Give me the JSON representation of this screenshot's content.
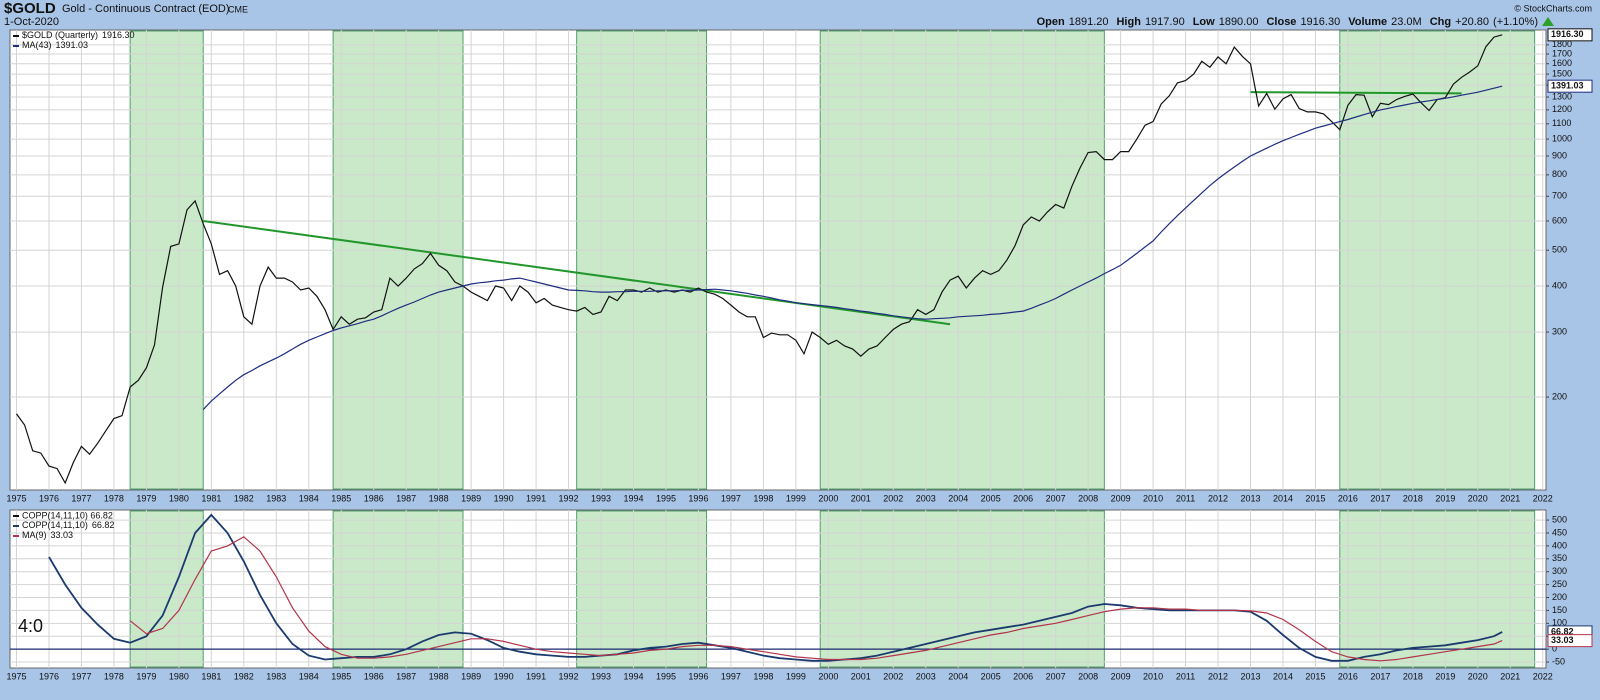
{
  "chart_data": [
    {
      "type": "line",
      "title": "$GOLD",
      "subtitle": "Gold - Continuous Contract (EOD)",
      "exchange": "CME",
      "date": "1-Oct-2020",
      "quote": [
        {
          "name": "Open",
          "value": 1891.2,
          "label": "1891.20"
        },
        {
          "name": "High",
          "value": 1917.9,
          "label": "1917.90"
        },
        {
          "name": "Low",
          "value": 1890,
          "label": "1890.00"
        },
        {
          "name": "Close",
          "value": 1916.3,
          "label": "1916.30"
        },
        {
          "name": "Volume",
          "value": 23000000,
          "label": "23.0M"
        },
        {
          "name": "Chg",
          "value": 20.8,
          "label": "+20.80"
        }
      ],
      "change_pct": {
        "value": 1.1,
        "label": "(+1.10%)"
      },
      "credit": "© StockCharts.com",
      "log_scale": true,
      "grid": true,
      "xlim": [
        1974.8,
        2022.1
      ],
      "xticks": [
        1975,
        1976,
        1977,
        1978,
        1979,
        1980,
        1981,
        1982,
        1983,
        1984,
        1985,
        1986,
        1987,
        1988,
        1989,
        1990,
        1991,
        1992,
        1993,
        1994,
        1995,
        1996,
        1997,
        1998,
        1999,
        2000,
        2001,
        2002,
        2003,
        2004,
        2005,
        2006,
        2007,
        2008,
        2009,
        2010,
        2011,
        2012,
        2013,
        2014,
        2015,
        2016,
        2017,
        2018,
        2019,
        2020,
        2021,
        2022
      ],
      "ylim": [
        112,
        1975
      ],
      "yticks": [
        200,
        300,
        400,
        500,
        600,
        700,
        800,
        900,
        1000,
        1100,
        1200,
        1300,
        1400,
        1500,
        1600,
        1700,
        1800
      ],
      "bands": [
        [
          1978.5,
          1980.75
        ],
        [
          1984.75,
          1988.75
        ],
        [
          1992.25,
          1996.25
        ],
        [
          1999.75,
          2008.5
        ],
        [
          2015.75,
          2021.75
        ]
      ],
      "trendlines": [
        {
          "color": "#21962a",
          "x": [
            1980.75,
            2003.75
          ],
          "values": [
            600,
            315
          ]
        },
        {
          "color": "#21962a",
          "x": [
            2013,
            2019.5
          ],
          "values": [
            1340,
            1330
          ]
        }
      ],
      "x": [
        1975,
        1975.25,
        1975.5,
        1975.75,
        1976,
        1976.25,
        1976.5,
        1976.75,
        1977,
        1977.25,
        1977.5,
        1977.75,
        1978,
        1978.25,
        1978.5,
        1978.75,
        1979,
        1979.25,
        1979.5,
        1979.75,
        1980,
        1980.25,
        1980.5,
        1980.75,
        1981,
        1981.25,
        1981.5,
        1981.75,
        1982,
        1982.25,
        1982.5,
        1982.75,
        1983,
        1983.25,
        1983.5,
        1983.75,
        1984,
        1984.25,
        1984.5,
        1984.75,
        1985,
        1985.25,
        1985.5,
        1985.75,
        1986,
        1986.25,
        1986.5,
        1986.75,
        1987,
        1987.25,
        1987.5,
        1987.75,
        1988,
        1988.25,
        1988.5,
        1988.75,
        1989,
        1989.25,
        1989.5,
        1989.75,
        1990,
        1990.25,
        1990.5,
        1990.75,
        1991,
        1991.25,
        1991.5,
        1991.75,
        1992,
        1992.25,
        1992.5,
        1992.75,
        1993,
        1993.25,
        1993.5,
        1993.75,
        1994,
        1994.25,
        1994.5,
        1994.75,
        1995,
        1995.25,
        1995.5,
        1995.75,
        1996,
        1996.25,
        1996.5,
        1996.75,
        1997,
        1997.25,
        1997.5,
        1997.75,
        1998,
        1998.25,
        1998.5,
        1998.75,
        1999,
        1999.25,
        1999.5,
        1999.75,
        2000,
        2000.25,
        2000.5,
        2000.75,
        2001,
        2001.25,
        2001.5,
        2001.75,
        2002,
        2002.25,
        2002.5,
        2002.75,
        2003,
        2003.25,
        2003.5,
        2003.75,
        2004,
        2004.25,
        2004.5,
        2004.75,
        2005,
        2005.25,
        2005.5,
        2005.75,
        2006,
        2006.25,
        2006.5,
        2006.75,
        2007,
        2007.25,
        2007.5,
        2007.75,
        2008,
        2008.25,
        2008.5,
        2008.75,
        2009,
        2009.25,
        2009.5,
        2009.75,
        2010,
        2010.25,
        2010.5,
        2010.75,
        2011,
        2011.25,
        2011.5,
        2011.75,
        2012,
        2012.25,
        2012.5,
        2012.75,
        2013,
        2013.25,
        2013.5,
        2013.75,
        2014,
        2014.25,
        2014.5,
        2014.75,
        2015,
        2015.25,
        2015.5,
        2015.75,
        2016,
        2016.25,
        2016.5,
        2016.75,
        2017,
        2017.25,
        2017.5,
        2017.75,
        2018,
        2018.25,
        2018.5,
        2018.75,
        2019,
        2019.25,
        2019.5,
        2019.75,
        2020,
        2020.25,
        2020.5,
        2020.75
      ],
      "series": [
        {
          "name": "$GOLD (Quarterly)",
          "color": "#111111",
          "last": {
            "value": 1916.3,
            "label": "1916.30"
          },
          "values": [
            180,
            168,
            143,
            141,
            130,
            128,
            117,
            133,
            147,
            140,
            150,
            162,
            175,
            178,
            213,
            222,
            240,
            277,
            397,
            512,
            520,
            643,
            680,
            590,
            520,
            430,
            440,
            400,
            330,
            315,
            400,
            450,
            420,
            420,
            410,
            390,
            395,
            375,
            345,
            305,
            330,
            315,
            325,
            328,
            340,
            345,
            420,
            400,
            420,
            445,
            460,
            490,
            455,
            440,
            410,
            400,
            385,
            375,
            365,
            400,
            395,
            365,
            400,
            385,
            360,
            370,
            355,
            350,
            345,
            342,
            350,
            335,
            340,
            375,
            365,
            390,
            390,
            385,
            395,
            385,
            390,
            385,
            390,
            385,
            395,
            385,
            380,
            370,
            355,
            340,
            330,
            330,
            290,
            298,
            295,
            295,
            285,
            262,
            300,
            290,
            278,
            285,
            275,
            270,
            258,
            270,
            275,
            290,
            305,
            315,
            320,
            345,
            335,
            345,
            385,
            415,
            425,
            395,
            420,
            440,
            430,
            440,
            470,
            515,
            585,
            615,
            600,
            635,
            665,
            650,
            745,
            835,
            920,
            925,
            880,
            880,
            925,
            925,
            1000,
            1090,
            1115,
            1245,
            1310,
            1420,
            1440,
            1500,
            1625,
            1565,
            1670,
            1600,
            1775,
            1675,
            1600,
            1230,
            1330,
            1205,
            1285,
            1320,
            1210,
            1185,
            1185,
            1170,
            1115,
            1060,
            1235,
            1320,
            1315,
            1150,
            1250,
            1240,
            1280,
            1305,
            1325,
            1255,
            1195,
            1280,
            1295,
            1410,
            1470,
            1520,
            1580,
            1780,
            1890,
            1916.3
          ]
        },
        {
          "name": "MA(43)",
          "color": "#1f2d80",
          "last": {
            "value": 1391.03,
            "label": "1391.03"
          },
          "values": [
            null,
            null,
            null,
            null,
            null,
            null,
            null,
            null,
            null,
            null,
            null,
            null,
            null,
            null,
            null,
            null,
            null,
            null,
            null,
            null,
            null,
            null,
            null,
            185,
            195,
            204,
            213,
            222,
            230,
            236,
            243,
            249,
            255,
            262,
            270,
            278,
            285,
            291,
            297,
            303,
            308,
            312,
            316,
            321,
            325,
            332,
            340,
            348,
            355,
            362,
            370,
            378,
            385,
            390,
            395,
            400,
            405,
            408,
            410,
            413,
            415,
            418,
            420,
            415,
            410,
            405,
            400,
            395,
            390,
            389,
            388,
            386,
            385,
            385,
            386,
            386,
            387,
            387,
            387,
            388,
            388,
            388,
            389,
            389,
            390,
            391,
            392,
            390,
            388,
            385,
            382,
            378,
            375,
            371,
            367,
            364,
            360,
            358,
            356,
            354,
            352,
            350,
            347,
            345,
            342,
            340,
            337,
            335,
            332,
            330,
            328,
            326,
            325,
            326,
            327,
            328,
            330,
            331,
            332,
            333,
            335,
            336,
            338,
            340,
            342,
            348,
            355,
            362,
            370,
            380,
            390,
            400,
            410,
            420,
            432,
            443,
            455,
            472,
            490,
            510,
            530,
            560,
            590,
            620,
            650,
            682,
            715,
            748,
            780,
            810,
            840,
            870,
            900,
            922,
            945,
            968,
            990,
            1010,
            1030,
            1050,
            1070,
            1085,
            1100,
            1115,
            1130,
            1148,
            1165,
            1183,
            1200,
            1212,
            1225,
            1237,
            1250,
            1260,
            1270,
            1280,
            1290,
            1302,
            1315,
            1327,
            1340,
            1357,
            1374,
            1391.03
          ]
        }
      ]
    },
    {
      "type": "line",
      "title": "COPP(14,11,10) 66.82",
      "annotation": "4:0",
      "grid": true,
      "reference_line": 0,
      "xlim": [
        1974.8,
        2022.1
      ],
      "xticks": [
        1975,
        1976,
        1977,
        1978,
        1979,
        1980,
        1981,
        1982,
        1983,
        1984,
        1985,
        1986,
        1987,
        1988,
        1989,
        1990,
        1991,
        1992,
        1993,
        1994,
        1995,
        1996,
        1997,
        1998,
        1999,
        2000,
        2001,
        2002,
        2003,
        2004,
        2005,
        2006,
        2007,
        2008,
        2009,
        2010,
        2011,
        2012,
        2013,
        2014,
        2015,
        2016,
        2017,
        2018,
        2019,
        2020,
        2021,
        2022
      ],
      "ylim": [
        -73,
        539
      ],
      "yticks": [
        -50,
        0,
        50,
        100,
        150,
        200,
        250,
        300,
        350,
        400,
        450,
        500
      ],
      "x": [
        1976,
        1976.5,
        1977,
        1977.5,
        1978,
        1978.5,
        1979,
        1979.5,
        1980,
        1980.5,
        1981,
        1981.5,
        1982,
        1982.5,
        1983,
        1983.5,
        1984,
        1984.5,
        1985,
        1985.5,
        1986,
        1986.5,
        1987,
        1987.5,
        1988,
        1988.5,
        1989,
        1989.5,
        1990,
        1990.5,
        1991,
        1991.5,
        1992,
        1992.5,
        1993,
        1993.5,
        1994,
        1994.5,
        1995,
        1995.5,
        1996,
        1996.5,
        1997,
        1997.5,
        1998,
        1998.5,
        1999,
        1999.5,
        2000,
        2000.5,
        2001,
        2001.5,
        2002,
        2002.5,
        2003,
        2003.5,
        2004,
        2004.5,
        2005,
        2005.5,
        2006,
        2006.5,
        2007,
        2007.5,
        2008,
        2008.5,
        2009,
        2009.5,
        2010,
        2010.5,
        2011,
        2011.5,
        2012,
        2012.5,
        2013,
        2013.5,
        2014,
        2014.5,
        2015,
        2015.5,
        2016,
        2016.5,
        2017,
        2017.5,
        2018,
        2018.5,
        2019,
        2019.5,
        2020,
        2020.5,
        2020.75
      ],
      "series": [
        {
          "name": "COPP(14,11,10)",
          "color": "#1b3a6e",
          "last": {
            "value": 66.82,
            "label": "66.82"
          },
          "values": [
            357,
            250,
            160,
            95,
            40,
            25,
            50,
            130,
            280,
            450,
            520,
            450,
            340,
            210,
            100,
            20,
            -25,
            -40,
            -35,
            -30,
            -30,
            -20,
            0,
            30,
            55,
            65,
            60,
            35,
            5,
            -10,
            -20,
            -25,
            -30,
            -30,
            -25,
            -20,
            -5,
            5,
            10,
            20,
            25,
            15,
            5,
            -10,
            -25,
            -35,
            -40,
            -45,
            -45,
            -40,
            -35,
            -25,
            -10,
            5,
            20,
            35,
            50,
            65,
            75,
            85,
            95,
            110,
            125,
            140,
            165,
            175,
            170,
            160,
            155,
            150,
            150,
            150,
            150,
            150,
            145,
            110,
            55,
            5,
            -30,
            -45,
            -45,
            -30,
            -20,
            -5,
            5,
            10,
            15,
            25,
            35,
            50,
            66.82
          ]
        },
        {
          "name": "MA(9)",
          "color": "#b3344a",
          "last": {
            "value": 33.03,
            "label": "33.03"
          },
          "values": [
            null,
            null,
            null,
            null,
            null,
            110,
            60,
            80,
            150,
            270,
            380,
            400,
            435,
            380,
            280,
            160,
            70,
            10,
            -20,
            -35,
            -35,
            -30,
            -20,
            -5,
            10,
            25,
            40,
            40,
            30,
            15,
            0,
            -10,
            -15,
            -20,
            -25,
            -20,
            -15,
            -5,
            0,
            10,
            15,
            15,
            10,
            0,
            -10,
            -20,
            -30,
            -35,
            -40,
            -40,
            -40,
            -35,
            -25,
            -15,
            -5,
            10,
            25,
            40,
            55,
            65,
            80,
            90,
            100,
            115,
            130,
            145,
            155,
            160,
            160,
            155,
            155,
            150,
            150,
            150,
            148,
            140,
            115,
            75,
            30,
            -10,
            -30,
            -40,
            -45,
            -40,
            -30,
            -20,
            -10,
            0,
            10,
            20,
            33.03
          ]
        }
      ]
    }
  ]
}
